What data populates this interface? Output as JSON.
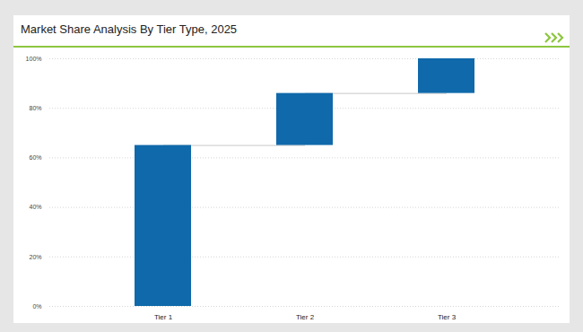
{
  "chart_data": {
    "type": "waterfall",
    "title": "Market Share Analysis By Tier Type, 2025",
    "categories": [
      "Tier 1",
      "Tier 2",
      "Tier 3"
    ],
    "values": [
      65,
      21,
      14
    ],
    "color": "#0f69aa",
    "ylim": [
      0,
      100
    ],
    "yticks": [
      {
        "value": 0,
        "label": "0%"
      },
      {
        "value": 20,
        "label": "20%"
      },
      {
        "value": 40,
        "label": "40%"
      },
      {
        "value": 60,
        "label": "60%"
      },
      {
        "value": 80,
        "label": "80%"
      },
      {
        "value": 100,
        "label": "100%"
      }
    ],
    "grid": true
  }
}
